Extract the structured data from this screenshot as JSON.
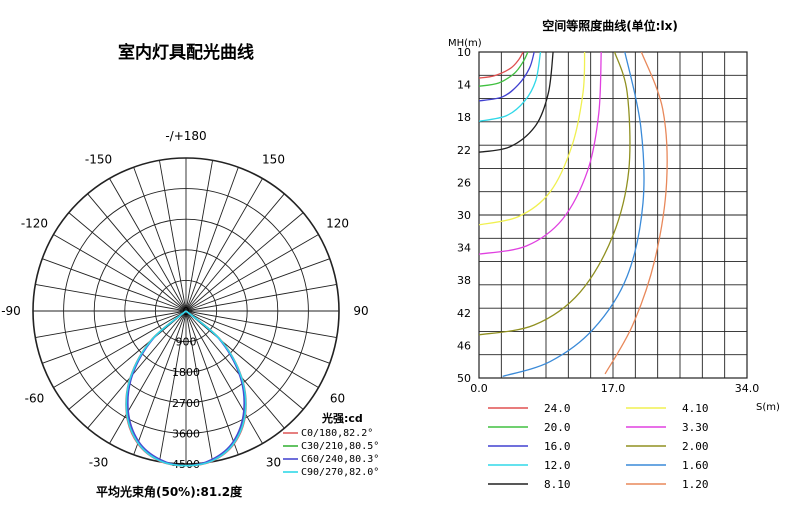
{
  "polar": {
    "title": "室内灯具配光曲线",
    "angle_labels": [
      {
        "text": "-/+180",
        "angle": 180
      },
      {
        "text": "-150",
        "angle": -150
      },
      {
        "text": "150",
        "angle": 150
      },
      {
        "text": "-120",
        "angle": -120
      },
      {
        "text": "120",
        "angle": 120
      },
      {
        "text": "-90",
        "angle": -90
      },
      {
        "text": "90",
        "angle": 90
      },
      {
        "text": "-60",
        "angle": -60
      },
      {
        "text": "60",
        "angle": 60
      },
      {
        "text": "-30",
        "angle": -30
      },
      {
        "text": "30",
        "angle": 30
      }
    ],
    "radial_labels": [
      "0",
      "900",
      "1800",
      "2700",
      "3600",
      "4500"
    ],
    "legend_title": "光强:cd",
    "bottom_note": "平均光束角(50%):81.2度",
    "colors": [
      "#e06060",
      "#3cb43c",
      "#4a4ad0",
      "#30d8e8"
    ]
  },
  "iso": {
    "title": "空间等照度曲线(单位:lx)",
    "y_label": "MH(m)",
    "x_label": "S(m)",
    "y_ticks": [
      "10",
      "14",
      "18",
      "22",
      "26",
      "30",
      "34",
      "38",
      "42",
      "46",
      "50"
    ],
    "x_ticks": [
      "0.0",
      "17.0",
      "34.0"
    ]
  },
  "chart_data": [
    {
      "type": "line",
      "title": "室内灯具配光曲线",
      "unit": "光强:cd",
      "radial_max": 4500,
      "radial_ticks": [
        0,
        900,
        1800,
        2700,
        3600,
        4500
      ],
      "angle_ticks": [
        180,
        -150,
        150,
        -120,
        120,
        -90,
        90,
        -60,
        60,
        -30,
        30
      ],
      "series": [
        {
          "name": "C0/180,82.2°",
          "color": "#e06060",
          "angles": [
            -60,
            -50,
            -40,
            -30,
            -20,
            -10,
            0,
            10,
            20,
            30,
            40,
            50,
            60
          ],
          "values": [
            0,
            1350,
            2550,
            3500,
            4150,
            4480,
            4550,
            4480,
            4150,
            3500,
            2550,
            1350,
            0
          ]
        },
        {
          "name": "C30/210,80.5°",
          "color": "#3cb43c",
          "angles": [
            -60,
            -50,
            -40,
            -30,
            -20,
            -10,
            0,
            10,
            20,
            30,
            40,
            50,
            60
          ],
          "values": [
            0,
            1300,
            2500,
            3450,
            4100,
            4450,
            4550,
            4450,
            4100,
            3450,
            2500,
            1300,
            0
          ]
        },
        {
          "name": "C60/240,80.3°",
          "color": "#4a4ad0",
          "angles": [
            -60,
            -50,
            -40,
            -30,
            -20,
            -10,
            0,
            10,
            20,
            30,
            40,
            50,
            60
          ],
          "values": [
            0,
            1250,
            2450,
            3400,
            4080,
            4430,
            4550,
            4430,
            4080,
            3400,
            2450,
            1250,
            0
          ]
        },
        {
          "name": "C90/270,82.0°",
          "color": "#30d8e8",
          "angles": [
            -60,
            -50,
            -40,
            -30,
            -20,
            -10,
            0,
            10,
            20,
            30,
            40,
            50,
            60
          ],
          "values": [
            0,
            1330,
            2530,
            3480,
            4130,
            4470,
            4550,
            4470,
            4130,
            3480,
            2530,
            1330,
            0
          ]
        }
      ]
    },
    {
      "type": "line",
      "title": "空间等照度曲线(单位:lx)",
      "xlabel": "S(m)",
      "ylabel": "MH(m)",
      "xlim": [
        0,
        34
      ],
      "ylim": [
        10,
        50
      ],
      "x_ticks": [
        0,
        17,
        34
      ],
      "y_ticks": [
        10,
        14,
        18,
        22,
        26,
        30,
        34,
        38,
        42,
        46,
        50
      ],
      "series": [
        {
          "name": "24.0",
          "color": "#e05050",
          "points": [
            [
              0,
              13.2
            ],
            [
              2,
              12.9
            ],
            [
              4,
              12.0
            ],
            [
              5,
              11.0
            ],
            [
              5.6,
              10
            ]
          ]
        },
        {
          "name": "20.0",
          "color": "#40c040",
          "points": [
            [
              0,
              14.2
            ],
            [
              2.5,
              13.8
            ],
            [
              4.5,
              12.6
            ],
            [
              5.6,
              11.2
            ],
            [
              6.2,
              10
            ]
          ]
        },
        {
          "name": "16.0",
          "color": "#4040d0",
          "points": [
            [
              0,
              16.0
            ],
            [
              3,
              15.5
            ],
            [
              5,
              14.0
            ],
            [
              6.4,
              12.0
            ],
            [
              7,
              10
            ]
          ]
        },
        {
          "name": "12.0",
          "color": "#30d8e8",
          "points": [
            [
              0,
              18.5
            ],
            [
              3.5,
              17.8
            ],
            [
              5.8,
              16.0
            ],
            [
              7.2,
              13.5
            ],
            [
              7.8,
              10
            ]
          ]
        },
        {
          "name": "8.10",
          "color": "#202020",
          "points": [
            [
              0,
              22.3
            ],
            [
              4,
              21.6
            ],
            [
              7.2,
              19.0
            ],
            [
              8.8,
              15.0
            ],
            [
              9.4,
              10
            ]
          ]
        },
        {
          "name": "4.10",
          "color": "#f0f050",
          "points": [
            [
              0,
              31.2
            ],
            [
              5,
              30.2
            ],
            [
              9,
              27.2
            ],
            [
              11.8,
              21.5
            ],
            [
              13.2,
              15.0
            ],
            [
              13.4,
              10
            ]
          ]
        },
        {
          "name": "3.30",
          "color": "#e040e0",
          "points": [
            [
              0,
              34.8
            ],
            [
              6,
              33.8
            ],
            [
              10.6,
              30.5
            ],
            [
              13.8,
              24.5
            ],
            [
              15.2,
              17.5
            ],
            [
              15.5,
              10
            ]
          ]
        },
        {
          "name": "2.00",
          "color": "#909020",
          "points": [
            [
              0,
              44.7
            ],
            [
              7,
              43.5
            ],
            [
              12.8,
              39.5
            ],
            [
              17,
              32.5
            ],
            [
              19,
              24.5
            ],
            [
              18.8,
              15.0
            ],
            [
              17.2,
              10
            ]
          ]
        },
        {
          "name": "1.60",
          "color": "#3a8ad8",
          "points": [
            [
              3,
              49.8
            ],
            [
              9,
              48.0
            ],
            [
              14.5,
              44.0
            ],
            [
              18.8,
              37.5
            ],
            [
              20.8,
              28.5
            ],
            [
              20.5,
              19.0
            ],
            [
              18.5,
              10
            ]
          ]
        },
        {
          "name": "1.20",
          "color": "#e8885a",
          "points": [
            [
              16,
              49.5
            ],
            [
              19.5,
              43.5
            ],
            [
              22.3,
              35.5
            ],
            [
              23.8,
              26.0
            ],
            [
              23.3,
              17.0
            ],
            [
              20.6,
              10
            ]
          ]
        }
      ]
    }
  ]
}
